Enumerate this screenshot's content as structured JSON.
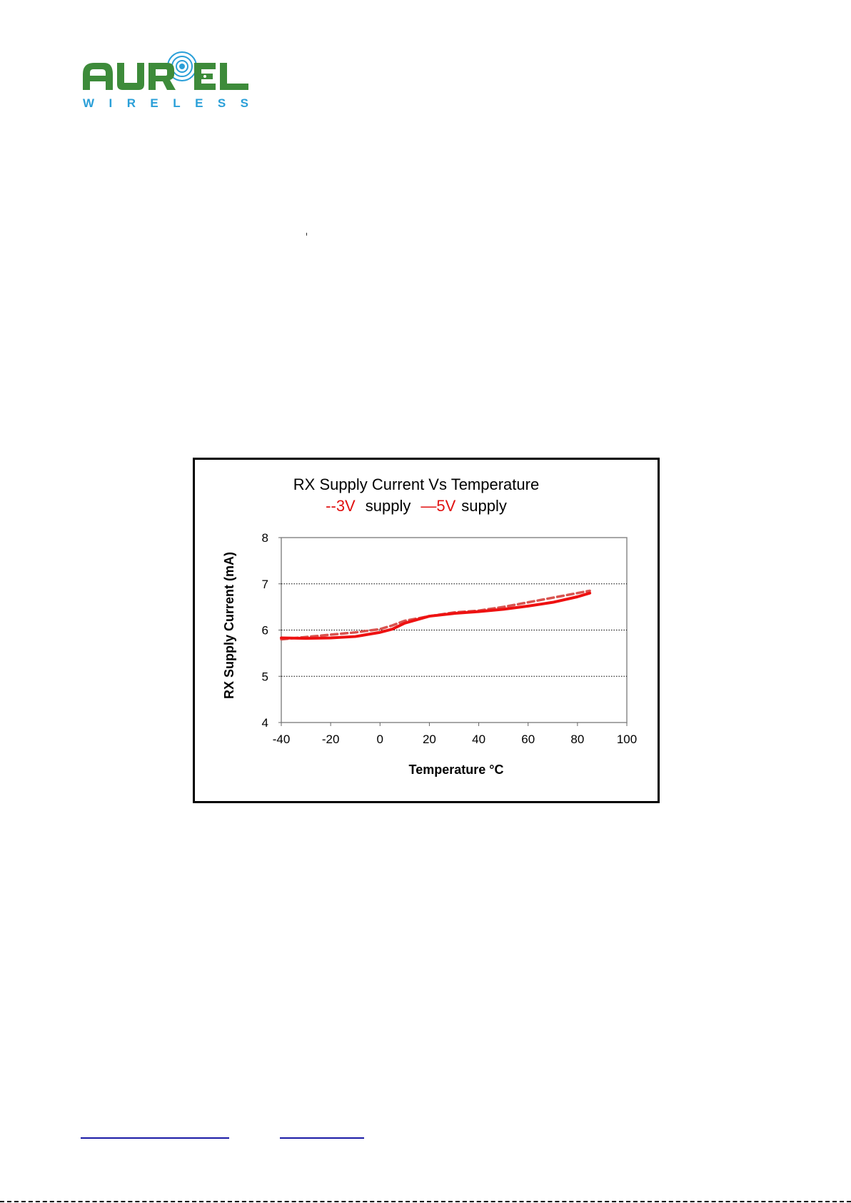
{
  "logo": {
    "brand_name": "AUREL",
    "brand_tagline": "WIRELESS",
    "colors": {
      "green": "#3d8b3a",
      "blue": "#2a9fd8"
    }
  },
  "chart_data": {
    "type": "line",
    "title": "RX Supply Current Vs Temperature",
    "legend": [
      {
        "marker": "--",
        "label": "3V",
        "suffix": "supply"
      },
      {
        "marker": "—",
        "label": "5V",
        "suffix": "supply"
      }
    ],
    "xlabel": "Temperature °C",
    "ylabel": "RX Supply Current (mA)",
    "xlim": [
      -40,
      100
    ],
    "ylim": [
      4,
      8
    ],
    "xticks": [
      -40,
      -20,
      0,
      20,
      40,
      60,
      80,
      100
    ],
    "yticks": [
      4,
      5,
      6,
      7,
      8
    ],
    "grid": "horizontal dotted",
    "series": [
      {
        "name": "3V",
        "style": "dashed",
        "color": "#d9534f",
        "x": [
          -40,
          -30,
          -20,
          -10,
          0,
          5,
          10,
          20,
          30,
          40,
          50,
          60,
          70,
          80,
          85
        ],
        "y": [
          5.8,
          5.85,
          5.9,
          5.95,
          6.02,
          6.1,
          6.2,
          6.3,
          6.38,
          6.42,
          6.5,
          6.6,
          6.7,
          6.8,
          6.85
        ]
      },
      {
        "name": "5V",
        "style": "solid",
        "color": "#ee1111",
        "x": [
          -40,
          -30,
          -20,
          -10,
          0,
          5,
          10,
          20,
          30,
          40,
          50,
          60,
          70,
          80,
          85
        ],
        "y": [
          5.83,
          5.82,
          5.83,
          5.86,
          5.95,
          6.02,
          6.15,
          6.3,
          6.36,
          6.4,
          6.45,
          6.52,
          6.6,
          6.72,
          6.8
        ]
      }
    ]
  },
  "footer": {
    "link_colors": "#1a1aa6"
  }
}
